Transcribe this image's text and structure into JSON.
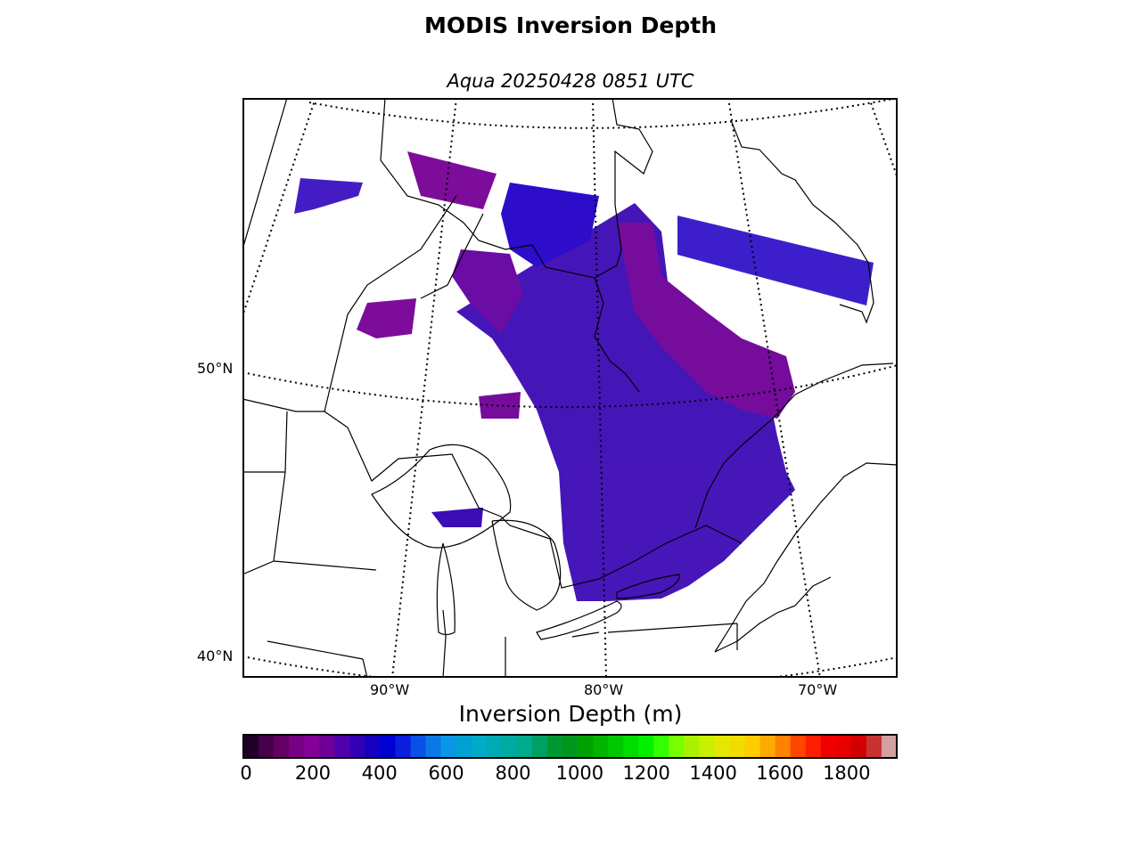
{
  "title": "MODIS Inversion Depth",
  "subtitle": "Aqua 20250428 0851 UTC",
  "map": {
    "lat_labels": [
      "50°N",
      "40°N"
    ],
    "lon_labels": [
      "90°W",
      "80°W",
      "70°W"
    ],
    "colors": {
      "frame": "#000000",
      "coastline": "#000000",
      "graticule": "#000000",
      "background": "#ffffff"
    }
  },
  "colorbar": {
    "label": "Inversion Depth (m)",
    "tick_labels": [
      "0",
      "200",
      "400",
      "600",
      "800",
      "1000",
      "1200",
      "1400",
      "1600",
      "1800"
    ],
    "range": [
      0,
      1950
    ],
    "bin_size_m": 50,
    "colors": [
      "#1e0028",
      "#46004b",
      "#640064",
      "#780082",
      "#820096",
      "#6e0096",
      "#5000aa",
      "#3200b4",
      "#1400be",
      "#0000d2",
      "#0a1edc",
      "#0a50e6",
      "#0a78e6",
      "#0a96e6",
      "#00a0d2",
      "#00aac8",
      "#00aab4",
      "#00aaa0",
      "#00aa8c",
      "#00a064",
      "#009632",
      "#00961e",
      "#00a000",
      "#00b400",
      "#00c800",
      "#00dc00",
      "#00f000",
      "#32ff00",
      "#78ff00",
      "#aaf000",
      "#c8f000",
      "#e6e600",
      "#f0dc00",
      "#ffcc00",
      "#ffaa00",
      "#ff8200",
      "#ff4600",
      "#ff1e00",
      "#f00000",
      "#e60000",
      "#d20000",
      "#c83232",
      "#d2a0a0"
    ]
  }
}
